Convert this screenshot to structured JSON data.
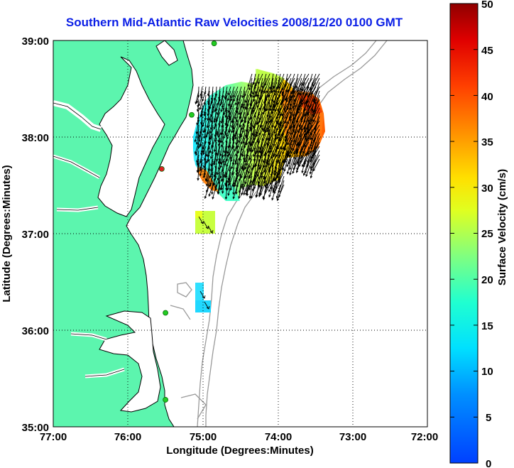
{
  "title": "Southern Mid-Atlantic Raw Velocities 2008/12/20 0100 GMT",
  "axes": {
    "xlabel": "Longitude (Degrees:Minutes)",
    "ylabel": "Latitude (Degrees:Minutes)",
    "xticks": [
      "77:00",
      "76:00",
      "75:00",
      "74:00",
      "73:00",
      "72:00"
    ],
    "yticks": [
      "39:00",
      "38:00",
      "37:00",
      "36:00",
      "35:00"
    ],
    "xlim": [
      -77,
      -72
    ],
    "ylim": [
      35,
      39
    ],
    "grid": "dotted"
  },
  "colorbar": {
    "label": "Surface Velocity (cm/s)",
    "ticks": [
      "50",
      "45",
      "40",
      "35",
      "30",
      "25",
      "20",
      "15",
      "10",
      "5",
      "0"
    ],
    "range": [
      0,
      50
    ],
    "colormap": "jet"
  },
  "colors": {
    "land": "#5cf5ae",
    "water": "#ffffff",
    "coast": "#000000",
    "bathymetry": "#9a9a9a",
    "title": "#0a1ee6",
    "station": "#22cc22",
    "station_offline": "#dd2222"
  },
  "stations": [
    {
      "lon": -74.85,
      "lat": 38.97,
      "status": "online"
    },
    {
      "lon": -75.15,
      "lat": 38.23,
      "status": "online"
    },
    {
      "lon": -75.55,
      "lat": 37.67,
      "status": "offline"
    },
    {
      "lon": -75.5,
      "lat": 36.18,
      "status": "online"
    },
    {
      "lon": -75.5,
      "lat": 35.28,
      "status": "online"
    }
  ]
}
